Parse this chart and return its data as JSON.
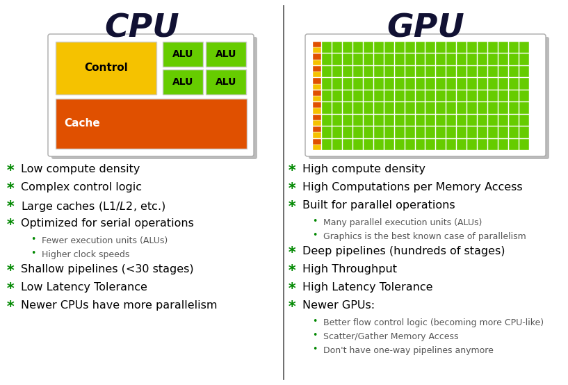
{
  "title_cpu": "CPU",
  "title_gpu": "GPU",
  "white": "#ffffff",
  "light_gray_bg": "#e8e8e8",
  "cpu_diagram": {
    "control_color": "#f5c200",
    "alu_color": "#66cc00",
    "cache_color": "#e05000",
    "control_text_color": "#000000",
    "alu_text_color": "#000000",
    "cache_text_color": "#ffffff"
  },
  "gpu_colors": {
    "yellow": "#f5c200",
    "orange": "#e05000",
    "green": "#66cc00"
  },
  "cpu_bullets": [
    {
      "text": "Low compute density",
      "level": 0
    },
    {
      "text": "Complex control logic",
      "level": 0
    },
    {
      "text": "Large caches (L1$/L2$, etc.)",
      "level": 0
    },
    {
      "text": "Optimized for serial operations",
      "level": 0
    },
    {
      "text": "Fewer execution units (ALUs)",
      "level": 1
    },
    {
      "text": "Higher clock speeds",
      "level": 1
    },
    {
      "text": "Shallow pipelines (<30 stages)",
      "level": 0
    },
    {
      "text": "Low Latency Tolerance",
      "level": 0
    },
    {
      "text": "Newer CPUs have more parallelism",
      "level": 0
    }
  ],
  "gpu_bullets": [
    {
      "text": "High compute density",
      "level": 0
    },
    {
      "text": "High Computations per Memory Access",
      "level": 0
    },
    {
      "text": "Built for parallel operations",
      "level": 0
    },
    {
      "text": "Many parallel execution units (ALUs)",
      "level": 1
    },
    {
      "text": "Graphics is the best known case of parallelism",
      "level": 1
    },
    {
      "text": "Deep pipelines (hundreds of stages)",
      "level": 0
    },
    {
      "text": "High Throughput",
      "level": 0
    },
    {
      "text": "High Latency Tolerance",
      "level": 0
    },
    {
      "text": "Newer GPUs:",
      "level": 0
    },
    {
      "text": "Better flow control logic (becoming more CPU-like)",
      "level": 1
    },
    {
      "text": "Scatter/Gather Memory Access",
      "level": 1
    },
    {
      "text": "Don't have one-way pipelines anymore",
      "level": 1
    }
  ],
  "star_color": "#008800",
  "sub_bullet_color": "#008800",
  "sub_text_color": "#555555",
  "divider_color": "#555555",
  "title_color": "#111133",
  "border_color": "#aaaaaa",
  "shadow_color": "#bbbbbb",
  "gpu_rows": 9,
  "gpu_green_cols": 20
}
